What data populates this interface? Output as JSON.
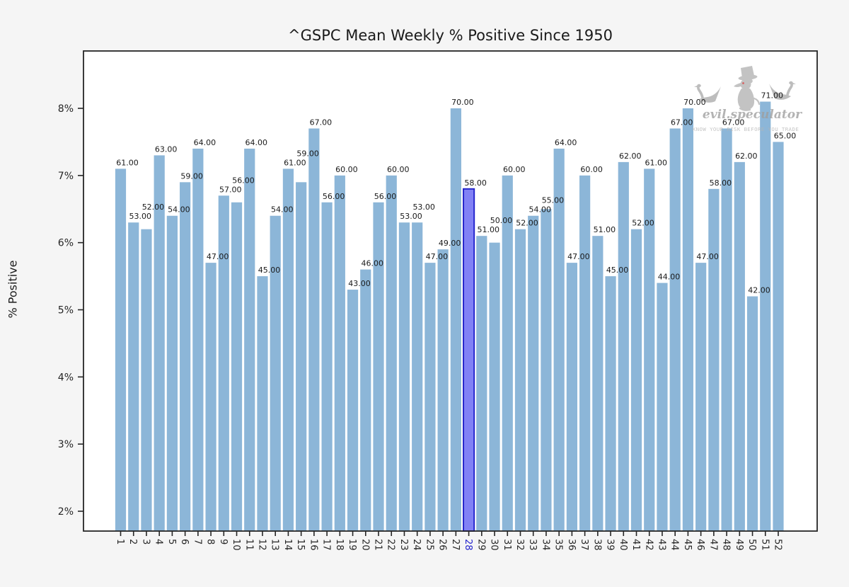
{
  "chart_data": {
    "type": "bar",
    "title": "^GSPC Mean Weekly % Positive Since 1950",
    "xlabel": "",
    "ylabel": "% Positive",
    "categories": [
      1,
      2,
      3,
      4,
      5,
      6,
      7,
      8,
      9,
      10,
      11,
      12,
      13,
      14,
      15,
      16,
      17,
      18,
      19,
      20,
      21,
      22,
      23,
      24,
      25,
      26,
      27,
      28,
      29,
      30,
      31,
      32,
      33,
      34,
      35,
      36,
      37,
      38,
      39,
      40,
      41,
      42,
      43,
      44,
      45,
      46,
      47,
      48,
      49,
      50,
      51,
      52
    ],
    "values": [
      61,
      53,
      52,
      63,
      54,
      59,
      64,
      47,
      57,
      56,
      64,
      45,
      54,
      61,
      59,
      67,
      56,
      60,
      43,
      46,
      56,
      60,
      53,
      53,
      47,
      49,
      70,
      58,
      51,
      50,
      60,
      52,
      54,
      55,
      64,
      47,
      60,
      51,
      45,
      62,
      52,
      61,
      44,
      67,
      70,
      47,
      58,
      67,
      62,
      42,
      71,
      65
    ],
    "bar_label_decimals": 2,
    "highlighted_category": 28,
    "highlighted_value": 58,
    "y_ticks": [
      "2%",
      "3%",
      "4%",
      "5%",
      "6%",
      "7%",
      "8%"
    ],
    "y_tick_values": [
      2,
      3,
      4,
      5,
      6,
      7,
      8
    ],
    "ylim_percent": [
      1.7,
      8.85
    ],
    "grid": "off",
    "legend": "none",
    "value_to_axis_percent": "percent = value/10 + 1"
  },
  "watermark": {
    "brand": "evil.speculator",
    "tagline": "KNOW YOUR RISK BEFORE YOU TRADE"
  },
  "colors": {
    "background": "#f5f5f5",
    "plot_background": "#ffffff",
    "bar": "#8cb6d8",
    "highlight_fill": "#8181f5",
    "highlight_edge": "#2626cc",
    "highlight_tick_label": "#2222cc",
    "axis_text": "#262626",
    "bar_label_text": "#1a1a1a",
    "spine": "#262626",
    "watermark_gray": "#ababab",
    "mascot_eye_red": "#cc3333"
  }
}
